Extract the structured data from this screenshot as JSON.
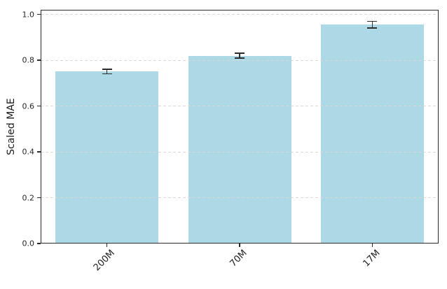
{
  "chart_data": {
    "type": "bar",
    "title": "",
    "xlabel": "",
    "ylabel": "Scaled MAE",
    "categories": [
      "200M",
      "70M",
      "17M"
    ],
    "values": [
      0.75,
      0.82,
      0.955
    ],
    "errors": [
      0.01,
      0.01,
      0.015
    ],
    "ylim": [
      0,
      1.02
    ],
    "yticks": [
      0.0,
      0.2,
      0.4,
      0.6,
      0.8,
      1.0
    ],
    "ytick_labels": [
      "0.0",
      "0.2",
      "0.4",
      "0.6",
      "0.8",
      "1.0"
    ],
    "x_tick_rotation_deg": 45,
    "grid": "horizontal-dashed",
    "legend": "none",
    "bar_color": "#ADD8E6",
    "error_bar_color": "#2d2d2d",
    "gridline_color": "#d9d9d9",
    "spine_color": "#2b2b2b",
    "tick_label_color": "#262626"
  }
}
